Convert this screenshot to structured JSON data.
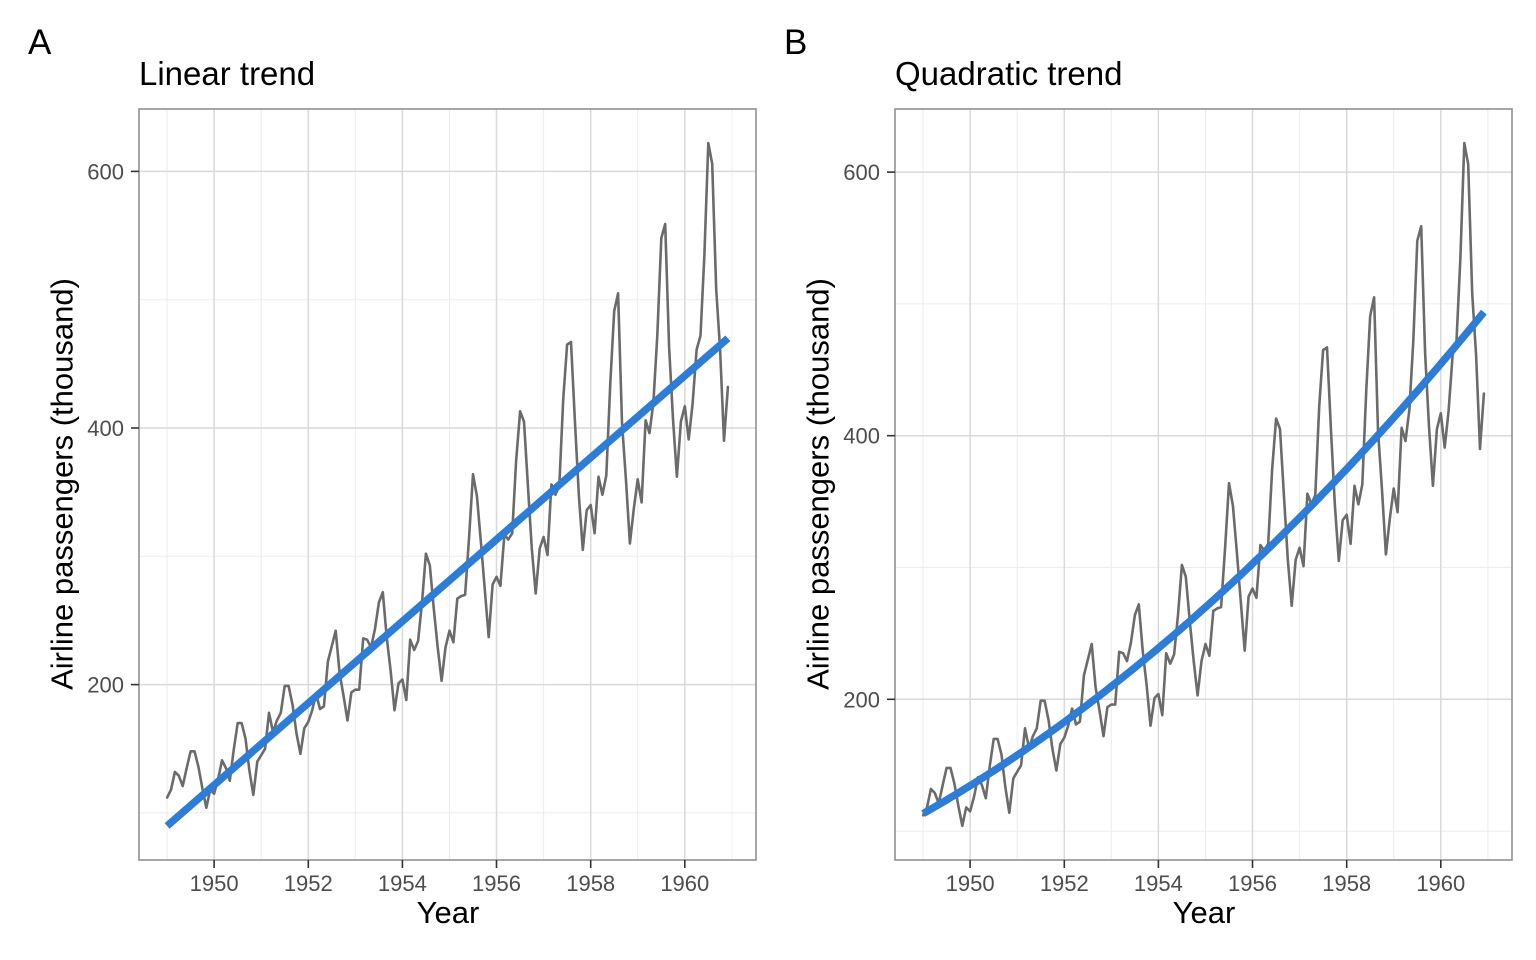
{
  "figure": {
    "background": "#ffffff",
    "description_tags": [
      "A",
      "B"
    ]
  },
  "chart_data": [
    {
      "type": "line",
      "tag": "A",
      "title": "Linear trend",
      "xlabel": "Year",
      "ylabel": "Airline passengers (thousand)",
      "xlim": [
        1948.404,
        1961.513
      ],
      "ylim": [
        63.3,
        648.6
      ],
      "x_ticks": [
        1950,
        1952,
        1954,
        1956,
        1958,
        1960
      ],
      "x_minor_ticks": [
        1949,
        1951,
        1953,
        1955,
        1957,
        1959,
        1961
      ],
      "y_ticks": [
        200,
        400,
        600
      ],
      "y_minor_ticks": [
        100,
        300,
        500
      ],
      "grid": {
        "major": true,
        "minor": true
      },
      "legend": "none",
      "colors": {
        "observed": "#6b6b6b",
        "trend": "#2d7dd6",
        "grid_major": "#d9d9d9",
        "grid_minor": "#ececec",
        "border": "#919191",
        "tick": "#333333",
        "tick_label": "#4d4d4d"
      },
      "series": [
        {
          "name": "observed-monthly-passengers",
          "type": "monthly",
          "x_start": 1949,
          "values": [
            112,
            118,
            132,
            129,
            121,
            135,
            148,
            148,
            136,
            119,
            104,
            118,
            115,
            126,
            141,
            135,
            125,
            149,
            170,
            170,
            158,
            133,
            114,
            140,
            145,
            150,
            178,
            163,
            172,
            178,
            199,
            199,
            184,
            162,
            146,
            166,
            171,
            180,
            193,
            181,
            183,
            218,
            230,
            242,
            209,
            191,
            172,
            194,
            196,
            196,
            236,
            235,
            229,
            243,
            264,
            272,
            237,
            211,
            180,
            201,
            204,
            188,
            235,
            227,
            234,
            264,
            302,
            293,
            259,
            229,
            203,
            229,
            242,
            233,
            267,
            269,
            270,
            315,
            364,
            347,
            312,
            274,
            237,
            278,
            284,
            277,
            317,
            313,
            318,
            374,
            413,
            405,
            355,
            306,
            271,
            306,
            315,
            301,
            356,
            348,
            355,
            422,
            465,
            467,
            404,
            347,
            305,
            336,
            340,
            318,
            362,
            348,
            363,
            435,
            491,
            505,
            404,
            359,
            310,
            337,
            360,
            342,
            406,
            396,
            420,
            472,
            548,
            559,
            463,
            407,
            362,
            405,
            417,
            391,
            419,
            461,
            472,
            535,
            622,
            606,
            508,
            461,
            390,
            432
          ]
        },
        {
          "name": "linear-trend",
          "type": "segment",
          "points": [
            [
              1949.0,
              89.9
            ],
            [
              1960.917,
              469.9
            ]
          ]
        }
      ]
    },
    {
      "type": "line",
      "tag": "B",
      "title": "Quadratic trend",
      "xlabel": "Year",
      "ylabel": "Airline passengers (thousand)",
      "xlim": [
        1948.404,
        1961.513
      ],
      "ylim": [
        78.1,
        647.9
      ],
      "x_ticks": [
        1950,
        1952,
        1954,
        1956,
        1958,
        1960
      ],
      "x_minor_ticks": [
        1949,
        1951,
        1953,
        1955,
        1957,
        1959,
        1961
      ],
      "y_ticks": [
        200,
        400,
        600
      ],
      "y_minor_ticks": [
        100,
        300,
        500
      ],
      "grid": {
        "major": true,
        "minor": true
      },
      "legend": "none",
      "colors": {
        "observed": "#6b6b6b",
        "trend": "#2d7dd6",
        "grid_major": "#d9d9d9",
        "grid_minor": "#ececec",
        "border": "#919191",
        "tick": "#333333",
        "tick_label": "#4d4d4d"
      },
      "series": [
        {
          "name": "observed-monthly-passengers",
          "type": "monthly",
          "x_start": 1949,
          "values": [
            112,
            118,
            132,
            129,
            121,
            135,
            148,
            148,
            136,
            119,
            104,
            118,
            115,
            126,
            141,
            135,
            125,
            149,
            170,
            170,
            158,
            133,
            114,
            140,
            145,
            150,
            178,
            163,
            172,
            178,
            199,
            199,
            184,
            162,
            146,
            166,
            171,
            180,
            193,
            181,
            183,
            218,
            230,
            242,
            209,
            191,
            172,
            194,
            196,
            196,
            236,
            235,
            229,
            243,
            264,
            272,
            237,
            211,
            180,
            201,
            204,
            188,
            235,
            227,
            234,
            264,
            302,
            293,
            259,
            229,
            203,
            229,
            242,
            233,
            267,
            269,
            270,
            315,
            364,
            347,
            312,
            274,
            237,
            278,
            284,
            277,
            317,
            313,
            318,
            374,
            413,
            405,
            355,
            306,
            271,
            306,
            315,
            301,
            356,
            348,
            355,
            422,
            465,
            467,
            404,
            347,
            305,
            336,
            340,
            318,
            362,
            348,
            363,
            435,
            491,
            505,
            404,
            359,
            310,
            337,
            360,
            342,
            406,
            396,
            420,
            472,
            548,
            559,
            463,
            407,
            362,
            405,
            417,
            391,
            419,
            461,
            472,
            535,
            622,
            606,
            508,
            461,
            390,
            432
          ]
        },
        {
          "name": "quadratic-trend",
          "type": "quadratic",
          "x_domain": [
            1949.0,
            1960.917
          ],
          "coef_origin": 1949,
          "coefficients": {
            "a": 113.3,
            "b": 20.18,
            "c": 0.986
          }
        }
      ]
    }
  ]
}
